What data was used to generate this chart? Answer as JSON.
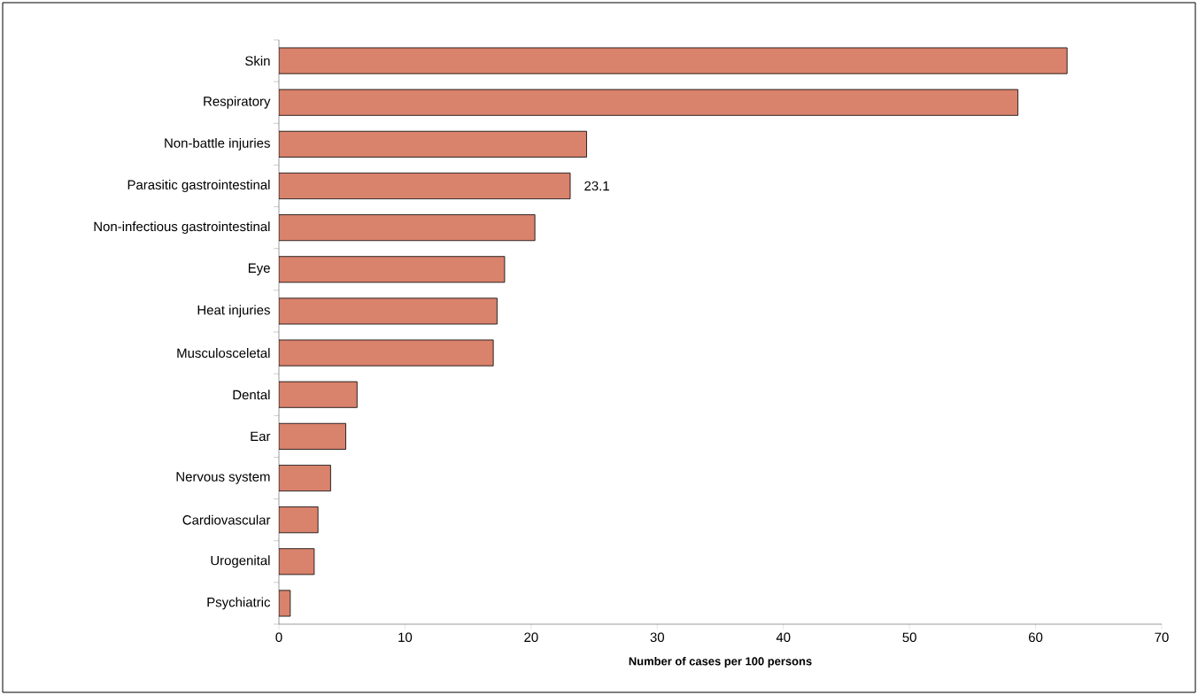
{
  "chart_data": {
    "type": "bar",
    "orientation": "horizontal",
    "xlabel": "Number of cases per 100 persons",
    "categories": [
      "Skin",
      "Respiratory",
      "Non-battle injuries",
      "Parasitic gastrointestinal",
      "Non-infectious gastrointestinal",
      "Eye",
      "Heat injuries",
      "Musculosceletal",
      "Dental",
      "Ear",
      "Nervous system",
      "Cardiovascular",
      "Urogenital",
      "Psychiatric"
    ],
    "values": [
      62.5,
      58.6,
      24.4,
      23.1,
      20.3,
      17.9,
      17.3,
      17.0,
      6.2,
      5.3,
      4.1,
      3.1,
      2.8,
      0.9
    ],
    "value_labels": [
      null,
      null,
      null,
      "23.1",
      null,
      null,
      null,
      null,
      null,
      null,
      null,
      null,
      null,
      null
    ],
    "color": "#d9826c",
    "xlim": [
      0,
      70
    ],
    "xticks": [
      0,
      10,
      20,
      30,
      40,
      50,
      60,
      70
    ]
  }
}
